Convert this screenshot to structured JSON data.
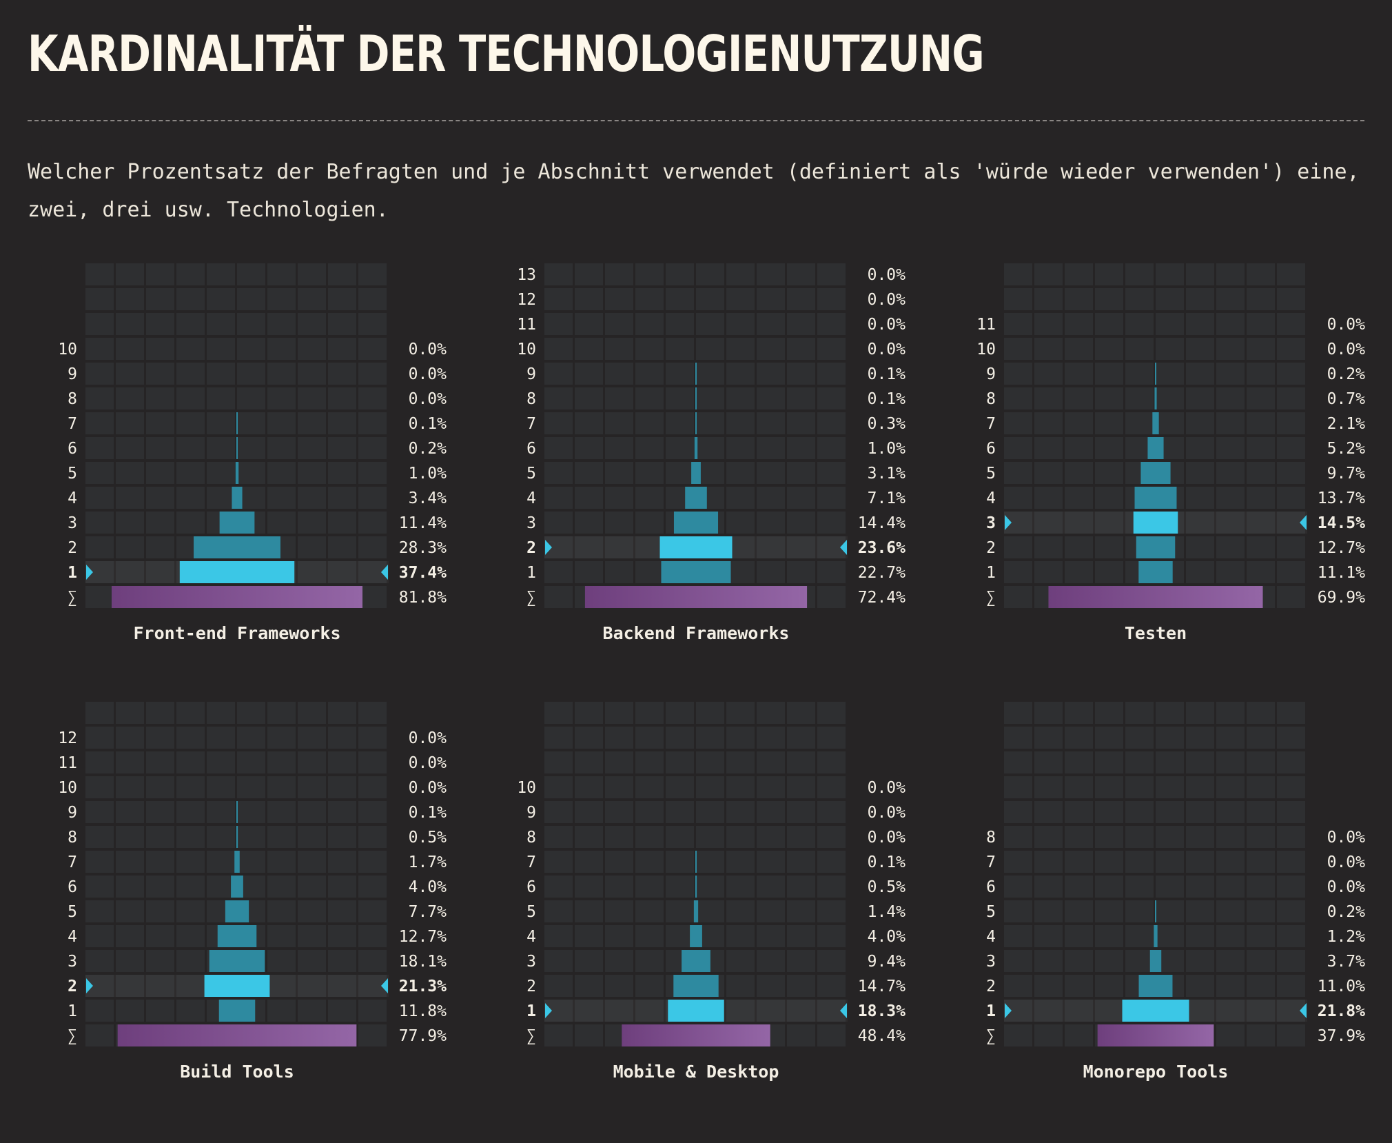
{
  "title": "KARDINALITÄT DER TECHNOLOGIENUTZUNG",
  "description": "Welcher Prozentsatz der Befragten und je Abschnitt verwendet (definiert als 'würde wieder verwenden') eine, zwei, drei usw. Technologien.",
  "colors": {
    "background": "#262425",
    "cell": "#2e2f31",
    "bar": "#2e8aa0",
    "bar_highlight": "#3bc7e6",
    "total_bar_start": "#6e3f7d",
    "total_bar_end": "#9466a6",
    "text": "#f4efe5",
    "marker": "#3bc7e6"
  },
  "chart_data": [
    {
      "type": "bar",
      "title": "Front-end Frameworks",
      "orientation": "horizontal-centered",
      "categories": [
        "1",
        "2",
        "3",
        "4",
        "5",
        "6",
        "7",
        "8",
        "9",
        "10"
      ],
      "values": [
        37.4,
        28.3,
        11.4,
        3.4,
        1.0,
        0.2,
        0.1,
        0.0,
        0.0,
        0.0
      ],
      "labels": [
        "37.4%",
        "28.3%",
        "11.4%",
        "3.4%",
        "1.0%",
        "0.2%",
        "0.1%",
        "0.0%",
        "0.0%",
        "0.0%"
      ],
      "highlight": "1",
      "total_label": "∑",
      "total": 81.8,
      "total_text": "81.8%"
    },
    {
      "type": "bar",
      "title": "Backend Frameworks",
      "orientation": "horizontal-centered",
      "categories": [
        "1",
        "2",
        "3",
        "4",
        "5",
        "6",
        "7",
        "8",
        "9",
        "10",
        "11",
        "12",
        "13"
      ],
      "values": [
        22.7,
        23.6,
        14.4,
        7.1,
        3.1,
        1.0,
        0.3,
        0.1,
        0.1,
        0.0,
        0.0,
        0.0,
        0.0
      ],
      "labels": [
        "22.7%",
        "23.6%",
        "14.4%",
        "7.1%",
        "3.1%",
        "1.0%",
        "0.3%",
        "0.1%",
        "0.1%",
        "0.0%",
        "0.0%",
        "0.0%",
        "0.0%"
      ],
      "highlight": "2",
      "total_label": "∑",
      "total": 72.4,
      "total_text": "72.4%"
    },
    {
      "type": "bar",
      "title": "Testen",
      "orientation": "horizontal-centered",
      "categories": [
        "1",
        "2",
        "3",
        "4",
        "5",
        "6",
        "7",
        "8",
        "9",
        "10",
        "11"
      ],
      "values": [
        11.1,
        12.7,
        14.5,
        13.7,
        9.7,
        5.2,
        2.1,
        0.7,
        0.2,
        0.0,
        0.0
      ],
      "labels": [
        "11.1%",
        "12.7%",
        "14.5%",
        "13.7%",
        "9.7%",
        "5.2%",
        "2.1%",
        "0.7%",
        "0.2%",
        "0.0%",
        "0.0%"
      ],
      "highlight": "3",
      "total_label": "∑",
      "total": 69.9,
      "total_text": "69.9%"
    },
    {
      "type": "bar",
      "title": "Build Tools",
      "orientation": "horizontal-centered",
      "categories": [
        "1",
        "2",
        "3",
        "4",
        "5",
        "6",
        "7",
        "8",
        "9",
        "10",
        "11",
        "12"
      ],
      "values": [
        11.8,
        21.3,
        18.1,
        12.7,
        7.7,
        4.0,
        1.7,
        0.5,
        0.1,
        0.0,
        0.0,
        0.0
      ],
      "labels": [
        "11.8%",
        "21.3%",
        "18.1%",
        "12.7%",
        "7.7%",
        "4.0%",
        "1.7%",
        "0.5%",
        "0.1%",
        "0.0%",
        "0.0%",
        "0.0%"
      ],
      "highlight": "2",
      "total_label": "∑",
      "total": 77.9,
      "total_text": "77.9%"
    },
    {
      "type": "bar",
      "title": "Mobile & Desktop",
      "orientation": "horizontal-centered",
      "categories": [
        "1",
        "2",
        "3",
        "4",
        "5",
        "6",
        "7",
        "8",
        "9",
        "10"
      ],
      "values": [
        18.3,
        14.7,
        9.4,
        4.0,
        1.4,
        0.5,
        0.1,
        0.0,
        0.0,
        0.0
      ],
      "labels": [
        "18.3%",
        "14.7%",
        "9.4%",
        "4.0%",
        "1.4%",
        "0.5%",
        "0.1%",
        "0.0%",
        "0.0%",
        "0.0%"
      ],
      "highlight": "1",
      "total_label": "∑",
      "total": 48.4,
      "total_text": "48.4%"
    },
    {
      "type": "bar",
      "title": "Monorepo Tools",
      "orientation": "horizontal-centered",
      "categories": [
        "1",
        "2",
        "3",
        "4",
        "5",
        "6",
        "7",
        "8"
      ],
      "values": [
        21.8,
        11.0,
        3.7,
        1.2,
        0.2,
        0.0,
        0.0,
        0.0
      ],
      "labels": [
        "21.8%",
        "11.0%",
        "3.7%",
        "1.2%",
        "0.2%",
        "0.0%",
        "0.0%",
        "0.0%"
      ],
      "highlight": "1",
      "total_label": "∑",
      "total": 37.9,
      "total_text": "37.9%"
    }
  ]
}
